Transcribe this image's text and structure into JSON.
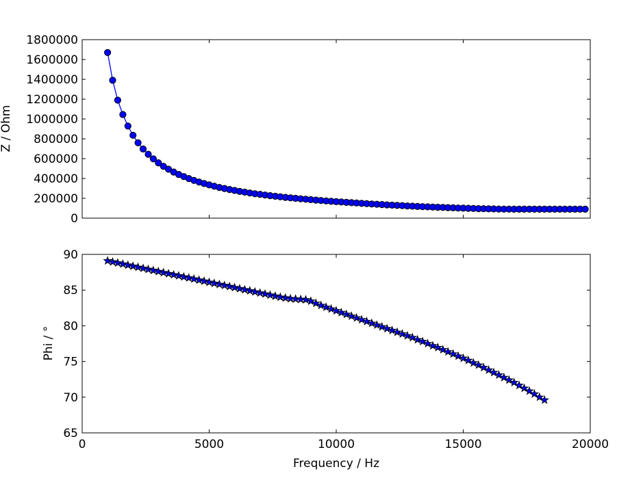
{
  "chart_data": [
    {
      "type": "line",
      "marker": "circle",
      "ylabel": "Z / Ohm",
      "xlim": [
        0,
        20000
      ],
      "ylim": [
        0,
        1800000
      ],
      "xticks": [
        0,
        5000,
        10000,
        15000,
        20000
      ],
      "yticks": [
        "0",
        "200000",
        "400000",
        "600000",
        "800000",
        "1000000",
        "1200000",
        "1400000",
        "1600000",
        "1800000"
      ],
      "color": "#0000ff",
      "x_start": 1000,
      "x_step": 200,
      "values": [
        1670000,
        1390000,
        1190000,
        1045000,
        929000,
        836000,
        760000,
        697000,
        644000,
        598000,
        558000,
        523000,
        493000,
        465000,
        441000,
        419000,
        399000,
        381000,
        364000,
        349000,
        335000,
        322000,
        310000,
        299000,
        289000,
        279000,
        270000,
        262000,
        254000,
        246000,
        240000,
        233000,
        227000,
        221000,
        215000,
        210000,
        205000,
        200000,
        195000,
        191000,
        186000,
        182000,
        178000,
        174000,
        170000,
        166000,
        163000,
        159000,
        156000,
        153000,
        149000,
        146000,
        143000,
        140000,
        137000,
        134000,
        131000,
        128000,
        126000,
        123000,
        121000,
        118000,
        116000,
        114000,
        112000,
        110000,
        108000,
        106000,
        104000,
        102000,
        101000,
        99000,
        98000,
        96000,
        95000,
        94000,
        93000,
        92000,
        91000,
        91000,
        90000,
        90000,
        90000,
        90000,
        90000,
        90000,
        90000,
        90000,
        90000,
        90000,
        90000,
        90000,
        90000,
        90000,
        90000
      ]
    },
    {
      "type": "line",
      "marker": "star",
      "xlabel": "Frequency / Hz",
      "ylabel": "Phi / °",
      "xlim": [
        0,
        20000
      ],
      "ylim": [
        65,
        90
      ],
      "xticks": [
        "0",
        "5000",
        "10000",
        "15000",
        "20000"
      ],
      "yticks": [
        "65",
        "70",
        "75",
        "80",
        "85",
        "90"
      ],
      "color": "#0000ff",
      "x_start": 1000,
      "x_step": 200,
      "values": [
        89.1,
        88.95,
        88.8,
        88.65,
        88.5,
        88.35,
        88.2,
        88.05,
        87.9,
        87.75,
        87.6,
        87.45,
        87.3,
        87.15,
        87.0,
        86.85,
        86.7,
        86.55,
        86.4,
        86.25,
        86.1,
        85.95,
        85.8,
        85.65,
        85.5,
        85.35,
        85.2,
        85.05,
        84.9,
        84.75,
        84.6,
        84.45,
        84.3,
        84.15,
        84.0,
        83.9,
        83.8,
        83.75,
        83.7,
        83.65,
        83.45,
        83.15,
        82.85,
        82.6,
        82.35,
        82.1,
        81.85,
        81.6,
        81.35,
        81.1,
        80.85,
        80.6,
        80.35,
        80.1,
        79.85,
        79.6,
        79.35,
        79.1,
        78.85,
        78.6,
        78.35,
        78.05,
        77.8,
        77.5,
        77.2,
        76.95,
        76.65,
        76.35,
        76.05,
        75.75,
        75.45,
        75.15,
        74.8,
        74.5,
        74.15,
        73.8,
        73.45,
        73.1,
        72.75,
        72.4,
        72.05,
        71.65,
        71.25,
        70.85,
        70.45,
        70.0,
        69.6
      ]
    }
  ]
}
